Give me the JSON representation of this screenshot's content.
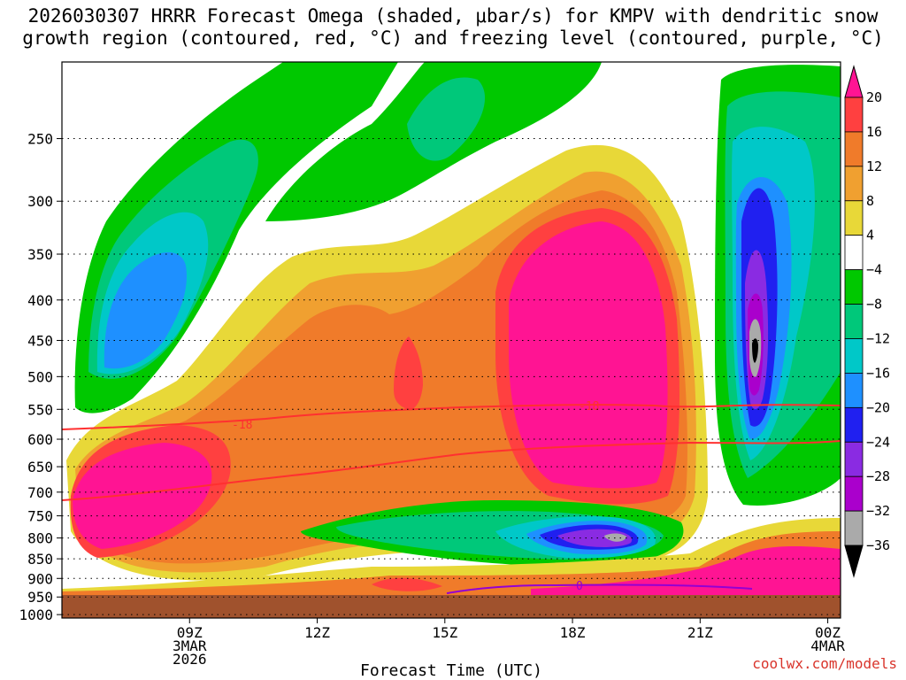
{
  "chart_data": {
    "type": "heatmap",
    "title_line1": "2026030307 HRRR Forecast Omega (shaded, μbar/s) for KMPV with dendritic snow",
    "title_line2": "growth region (contoured, red, °C) and freezing level (contoured, purple, °C)",
    "xlabel": "Forecast Time (UTC)",
    "credit": "coolwx.com/models",
    "y_axis": {
      "ticks": [
        250,
        300,
        350,
        400,
        450,
        500,
        550,
        600,
        650,
        700,
        750,
        800,
        850,
        900,
        950,
        1000
      ],
      "top": 200,
      "bottom": 1010,
      "scale": "log-pressure-inverted"
    },
    "x_axis": {
      "range_hours_utc": [
        6,
        24.3
      ],
      "ticks": [
        {
          "hour": 9,
          "lines": [
            "09Z",
            "3MAR",
            "2026"
          ]
        },
        {
          "hour": 12,
          "lines": [
            "12Z"
          ]
        },
        {
          "hour": 15,
          "lines": [
            "15Z"
          ]
        },
        {
          "hour": 18,
          "lines": [
            "18Z"
          ]
        },
        {
          "hour": 21,
          "lines": [
            "21Z"
          ]
        },
        {
          "hour": 24,
          "lines": [
            "00Z",
            "4MAR"
          ]
        }
      ]
    },
    "colorbar": {
      "labels": [
        "20",
        "16",
        "12",
        "8",
        "4",
        "−4",
        "−8",
        "−12",
        "−16",
        "−20",
        "−24",
        "−28",
        "−32",
        "−36"
      ],
      "colors": [
        "#ff1493",
        "#ff4040",
        "#f07b2a",
        "#f0a030",
        "#e8d838",
        "#ffffff",
        "#00c800",
        "#00c87a",
        "#00c8c8",
        "#1e90ff",
        "#2020f0",
        "#8a2be2",
        "#aa00cc",
        "#aaaaaa",
        "#000000"
      ]
    },
    "contours": {
      "dendritic_labels": [
        "-18",
        "-18"
      ],
      "freezing_label": "0",
      "dendritic_color": "#ff3030",
      "freezing_color": "#9400d3",
      "terrain_color": "#a0522d"
    }
  }
}
